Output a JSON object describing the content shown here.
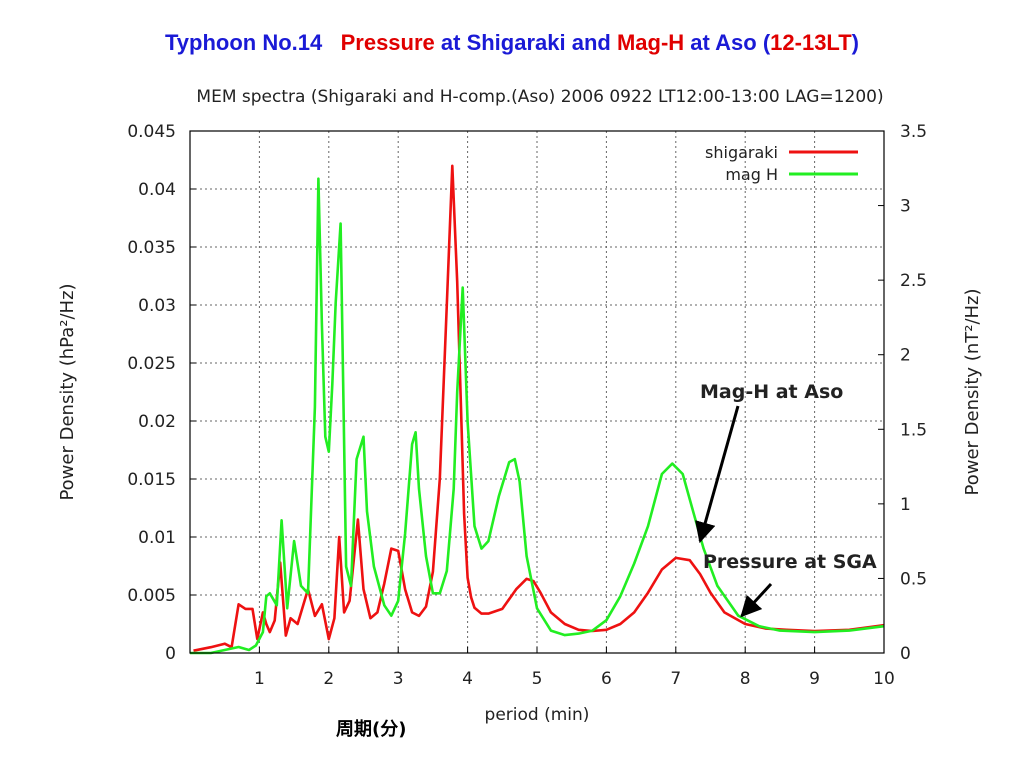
{
  "slide_title": {
    "part1": "Typhoon No.14",
    "part2": "Pressure",
    "part3": " at Shigaraki and ",
    "part4": "Mag-H",
    "part5": " at Aso (",
    "part6": "12-13LT",
    "part7": ")"
  },
  "period_label_cjk": "周期(分)",
  "colors": {
    "title_blue": "#1a1ad6",
    "title_red": "#e00000",
    "shigaraki": "#ee1111",
    "magh": "#22ee22",
    "grid": "#666666"
  },
  "chart_data": {
    "type": "line",
    "title": "MEM spectra (Shigaraki and H-comp.(Aso) 2006 0922 LT12:00-13:00 LAG=1200)",
    "xlabel": "period (min)",
    "ylabel_left": "Power Density (hPa²/Hz)",
    "ylabel_right": "Power Density (nT²/Hz)",
    "xlim": [
      0,
      10
    ],
    "ylim_left": [
      0,
      0.045
    ],
    "ylim_right": [
      0,
      3.5
    ],
    "x_ticks": [
      "1",
      "2",
      "3",
      "4",
      "5",
      "6",
      "7",
      "8",
      "9",
      "10"
    ],
    "y_left_ticks": [
      "0",
      "0.005",
      "0.01",
      "0.015",
      "0.02",
      "0.025",
      "0.03",
      "0.035",
      "0.04",
      "0.045"
    ],
    "y_right_ticks": [
      "0",
      "0.5",
      "1",
      "1.5",
      "2",
      "2.5",
      "3",
      "3.5"
    ],
    "grid": true,
    "legend_position": "top-right",
    "series": [
      {
        "name": "shigaraki",
        "axis": "left",
        "color": "#ee1111",
        "x": [
          0.05,
          0.3,
          0.5,
          0.6,
          0.7,
          0.8,
          0.9,
          0.97,
          1.05,
          1.1,
          1.15,
          1.22,
          1.3,
          1.38,
          1.45,
          1.55,
          1.7,
          1.8,
          1.9,
          2.0,
          2.08,
          2.15,
          2.22,
          2.3,
          2.42,
          2.5,
          2.6,
          2.7,
          2.8,
          2.9,
          3.0,
          3.1,
          3.2,
          3.3,
          3.4,
          3.5,
          3.6,
          3.7,
          3.78,
          3.85,
          3.9,
          3.95,
          4.0,
          4.05,
          4.1,
          4.2,
          4.3,
          4.5,
          4.7,
          4.85,
          4.95,
          5.05,
          5.2,
          5.4,
          5.6,
          5.8,
          6.0,
          6.2,
          6.4,
          6.6,
          6.8,
          7.0,
          7.2,
          7.35,
          7.5,
          7.7,
          8.0,
          8.3,
          8.6,
          9.0,
          9.5,
          10.0
        ],
        "y": [
          0.0002,
          0.0005,
          0.0008,
          0.0005,
          0.0042,
          0.0038,
          0.0038,
          0.0012,
          0.0035,
          0.0025,
          0.0018,
          0.0028,
          0.0078,
          0.0015,
          0.003,
          0.0025,
          0.0055,
          0.0032,
          0.0042,
          0.0012,
          0.003,
          0.01,
          0.0035,
          0.0045,
          0.0115,
          0.0055,
          0.003,
          0.0035,
          0.006,
          0.009,
          0.0088,
          0.0055,
          0.0035,
          0.0032,
          0.004,
          0.007,
          0.015,
          0.03,
          0.042,
          0.032,
          0.022,
          0.012,
          0.0065,
          0.0048,
          0.0039,
          0.0034,
          0.0034,
          0.0038,
          0.0055,
          0.0064,
          0.0062,
          0.0052,
          0.0035,
          0.0025,
          0.002,
          0.0019,
          0.002,
          0.0025,
          0.0035,
          0.0052,
          0.0072,
          0.0082,
          0.008,
          0.0068,
          0.0052,
          0.0035,
          0.0025,
          0.0021,
          0.002,
          0.0019,
          0.002,
          0.0024
        ]
      },
      {
        "name": "mag H",
        "axis": "right",
        "color": "#22ee22",
        "x": [
          0.0,
          0.3,
          0.5,
          0.7,
          0.85,
          0.95,
          1.05,
          1.1,
          1.15,
          1.25,
          1.32,
          1.4,
          1.5,
          1.6,
          1.7,
          1.8,
          1.85,
          1.9,
          1.95,
          2.0,
          2.05,
          2.1,
          2.17,
          2.25,
          2.32,
          2.4,
          2.5,
          2.55,
          2.65,
          2.8,
          2.9,
          3.0,
          3.1,
          3.2,
          3.25,
          3.3,
          3.4,
          3.5,
          3.6,
          3.7,
          3.8,
          3.85,
          3.93,
          4.0,
          4.1,
          4.2,
          4.3,
          4.45,
          4.6,
          4.68,
          4.75,
          4.85,
          5.0,
          5.2,
          5.4,
          5.6,
          5.8,
          6.0,
          6.2,
          6.4,
          6.6,
          6.8,
          6.95,
          7.1,
          7.25,
          7.4,
          7.6,
          7.9,
          8.2,
          8.5,
          9.0,
          9.5,
          10.0
        ],
        "y": [
          0.0,
          0.0,
          0.02,
          0.04,
          0.02,
          0.05,
          0.14,
          0.38,
          0.4,
          0.32,
          0.89,
          0.3,
          0.75,
          0.45,
          0.4,
          1.65,
          3.18,
          2.2,
          1.45,
          1.35,
          1.8,
          2.35,
          2.88,
          0.58,
          0.45,
          1.3,
          1.45,
          0.95,
          0.58,
          0.32,
          0.25,
          0.35,
          0.8,
          1.4,
          1.48,
          1.1,
          0.65,
          0.4,
          0.4,
          0.55,
          1.1,
          1.75,
          2.45,
          1.55,
          0.85,
          0.7,
          0.75,
          1.05,
          1.28,
          1.3,
          1.15,
          0.65,
          0.3,
          0.15,
          0.12,
          0.13,
          0.15,
          0.22,
          0.38,
          0.6,
          0.85,
          1.2,
          1.27,
          1.2,
          0.95,
          0.7,
          0.45,
          0.25,
          0.18,
          0.15,
          0.14,
          0.15,
          0.18
        ]
      }
    ],
    "annotations": [
      {
        "text": "Mag-H at Aso",
        "points_to_x": 7.35,
        "points_to_y_right": 0.75
      },
      {
        "text": "Pressure at SGA",
        "points_to_x": 7.95,
        "points_to_y_left": 0.0032
      }
    ]
  }
}
